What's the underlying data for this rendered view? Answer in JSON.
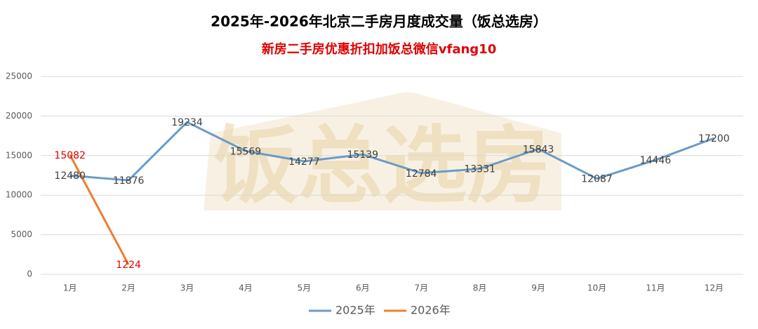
{
  "chart_data": {
    "type": "line",
    "title": "2025年-2026年北京二手房月度成交量（饭总选房）",
    "subtitle": "新房二手房优惠折扣加饭总微信vfang10",
    "watermark": "饭总选房",
    "categories": [
      "1月",
      "2月",
      "3月",
      "4月",
      "5月",
      "6月",
      "7月",
      "8月",
      "9月",
      "10月",
      "11月",
      "12月"
    ],
    "series": [
      {
        "name": "2025年",
        "color": "#6b9bc8",
        "label_color": "#404040",
        "values": [
          12480,
          11876,
          19234,
          15569,
          14277,
          15139,
          12784,
          13331,
          15843,
          12087,
          14446,
          17200
        ]
      },
      {
        "name": "2026年",
        "color": "#ed7d31",
        "label_color": "#e00000",
        "values": [
          15082,
          1224,
          null,
          null,
          null,
          null,
          null,
          null,
          null,
          null,
          null,
          null
        ]
      }
    ],
    "ylim": [
      0,
      25000
    ],
    "yticks": [
      0,
      5000,
      10000,
      15000,
      20000,
      25000
    ],
    "grid": true,
    "legend": "bottom"
  }
}
